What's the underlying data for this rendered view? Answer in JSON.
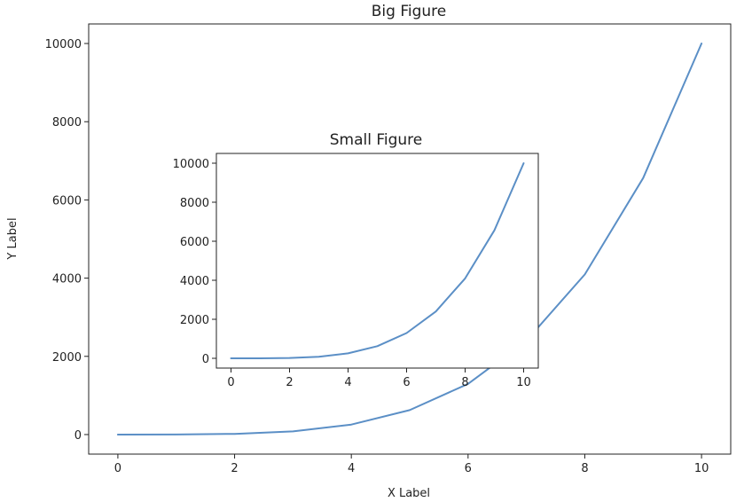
{
  "chart_data": [
    {
      "type": "line",
      "title": "Big Figure",
      "xlabel": "X Label",
      "ylabel": "Y Label",
      "xlim": [
        -0.5,
        10.5
      ],
      "ylim": [
        -500,
        10500
      ],
      "xticks": [
        0,
        2,
        4,
        6,
        8,
        10
      ],
      "yticks": [
        0,
        2000,
        4000,
        6000,
        8000,
        10000
      ],
      "grid": false,
      "series": [
        {
          "color": "#5b8fc6",
          "x": [
            0,
            1,
            2,
            3,
            4,
            5,
            6,
            7,
            8,
            9,
            10
          ],
          "y": [
            0,
            1,
            16,
            81,
            256,
            625,
            1296,
            2401,
            4096,
            6561,
            10000
          ]
        }
      ]
    },
    {
      "type": "line",
      "title": "Small Figure",
      "xlabel": "",
      "ylabel": "",
      "xlim": [
        -0.5,
        10.5
      ],
      "ylim": [
        -500,
        10500
      ],
      "xticks": [
        0,
        2,
        4,
        6,
        8,
        10
      ],
      "yticks": [
        0,
        2000,
        4000,
        6000,
        8000,
        10000
      ],
      "grid": false,
      "series": [
        {
          "color": "#5b8fc6",
          "x": [
            0,
            1,
            2,
            3,
            4,
            5,
            6,
            7,
            8,
            9,
            10
          ],
          "y": [
            0,
            1,
            16,
            81,
            256,
            625,
            1296,
            2401,
            4096,
            6561,
            10000
          ]
        }
      ]
    }
  ]
}
